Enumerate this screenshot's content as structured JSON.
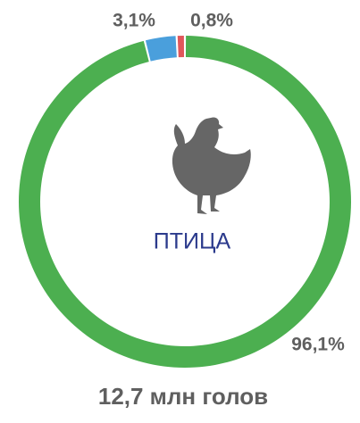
{
  "chart_data": {
    "type": "donut",
    "values": [
      96.1,
      3.1,
      0.8
    ],
    "value_labels": [
      "96,1%",
      "3,1%",
      "0,8%"
    ],
    "colors": [
      "#4caf50",
      "#4a9fdc",
      "#e0575b"
    ],
    "center_label": "ПТИЦА",
    "title": "12,7 млн голов"
  }
}
